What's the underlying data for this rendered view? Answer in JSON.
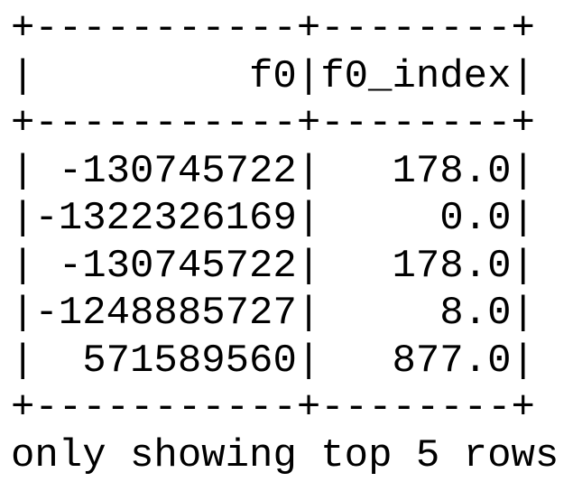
{
  "table": {
    "border": "+-----------+--------+",
    "separator": "|",
    "columns": [
      "f0",
      "f0_index"
    ],
    "rows": [
      [
        "-130745722",
        "178.0"
      ],
      [
        "-1322326169",
        "0.0"
      ],
      [
        "-130745722",
        "178.0"
      ],
      [
        "-1248885727",
        "8.0"
      ],
      [
        "571589560",
        "877.0"
      ]
    ],
    "footer": "only showing top 5 rows"
  }
}
